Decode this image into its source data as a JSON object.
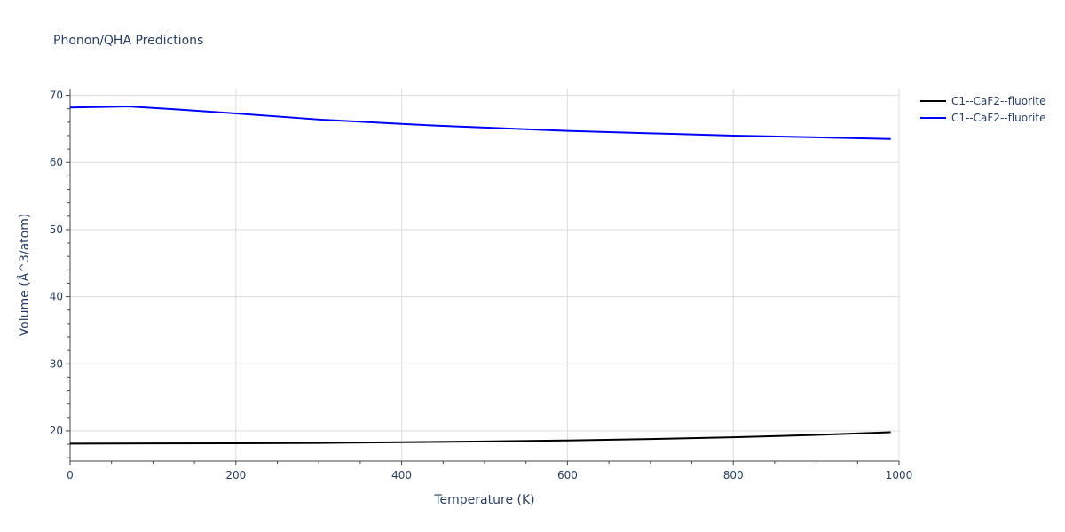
{
  "chart_data": {
    "type": "line",
    "title": "Phonon/QHA Predictions",
    "xlabel": "Temperature (K)",
    "ylabel": "Volume (Å^3/atom)",
    "xlim": [
      0,
      1000
    ],
    "ylim": [
      15.5,
      71
    ],
    "x_ticks": [
      0,
      200,
      400,
      600,
      800,
      1000
    ],
    "y_ticks": [
      20,
      30,
      40,
      50,
      60,
      70
    ],
    "x_tick_labels": [
      "0",
      "200",
      "400",
      "600",
      "800",
      "1000"
    ],
    "y_tick_labels": [
      "20",
      "30",
      "40",
      "50",
      "60",
      "70"
    ],
    "grid": true,
    "legend_position": "top-right",
    "series": [
      {
        "name": "C1--CaF2--fluorite",
        "color": "#000000",
        "x": [
          0,
          100,
          200,
          300,
          400,
          500,
          600,
          700,
          800,
          900,
          990
        ],
        "y": [
          18.1,
          18.12,
          18.15,
          18.2,
          18.3,
          18.42,
          18.58,
          18.78,
          19.05,
          19.4,
          19.8
        ]
      },
      {
        "name": "C1--CaF2--fluorite",
        "color": "#0000ff",
        "x": [
          0,
          70,
          130,
          200,
          300,
          400,
          440,
          500,
          600,
          700,
          800,
          900,
          990
        ],
        "y": [
          68.2,
          68.35,
          67.9,
          67.3,
          66.4,
          65.75,
          65.5,
          65.2,
          64.7,
          64.35,
          64.0,
          63.75,
          63.5
        ]
      }
    ]
  }
}
